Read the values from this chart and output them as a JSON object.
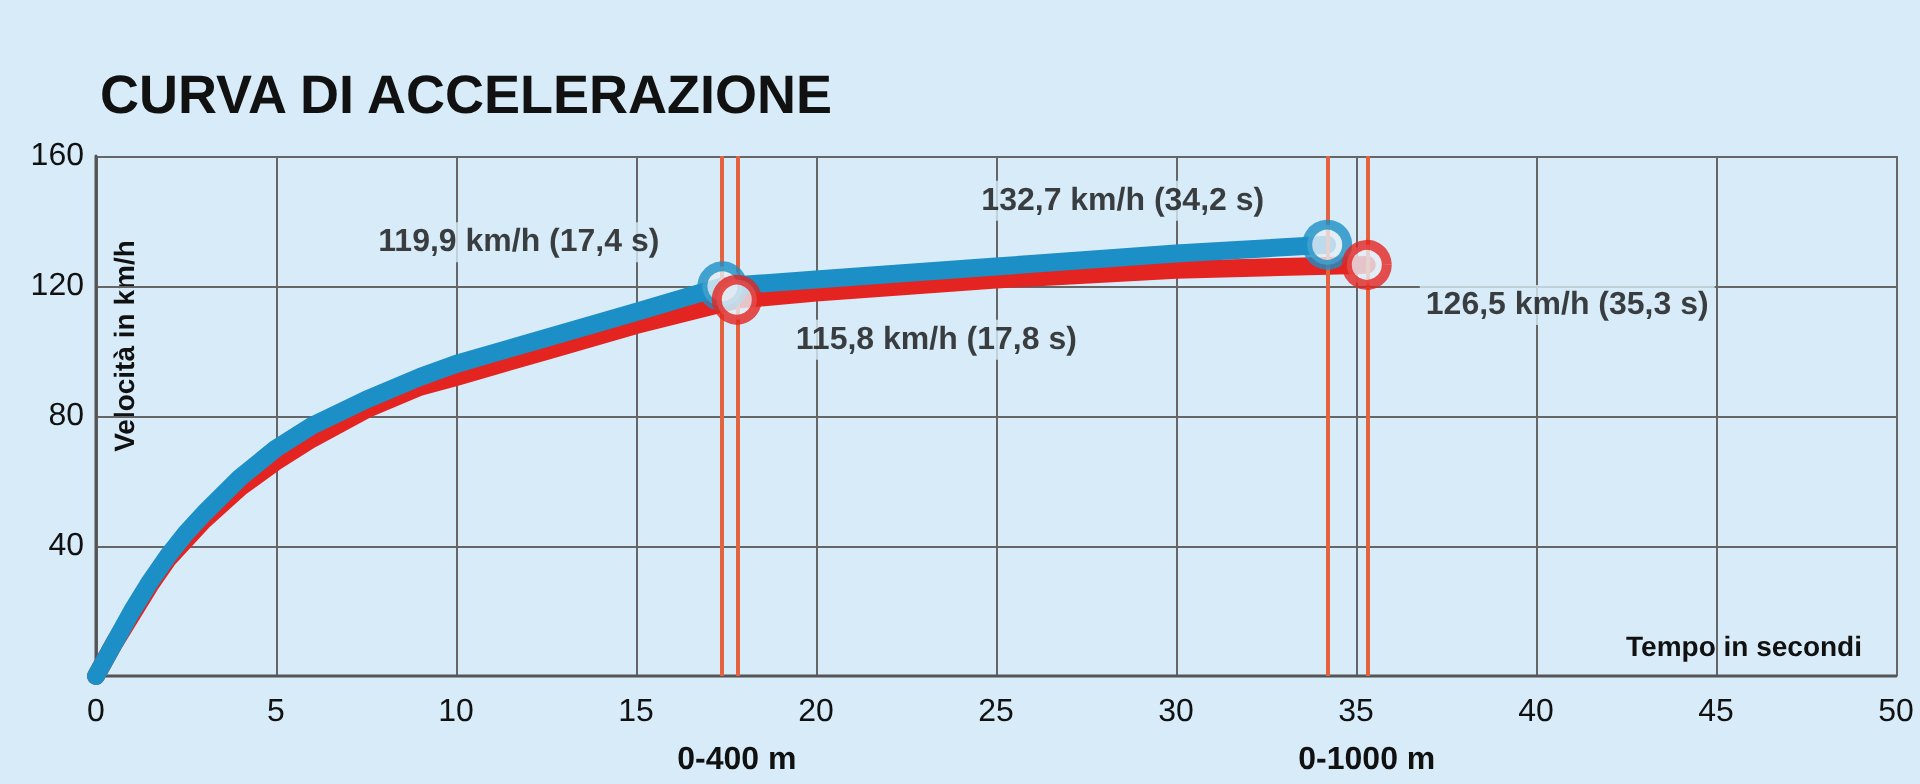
{
  "chart_data": {
    "type": "line",
    "title": "CURVA DI ACCELERAZIONE",
    "xlabel": "Tempo in secondi",
    "ylabel": "Velocità in km/h",
    "xlim": [
      0,
      50
    ],
    "xticks": [
      0,
      5,
      10,
      15,
      20,
      25,
      30,
      35,
      40,
      45,
      50
    ],
    "ylim": [
      0,
      160
    ],
    "yticks": [
      40,
      80,
      120,
      160
    ],
    "grid": true,
    "line_style": "solid",
    "series": [
      {
        "color": "#e42421",
        "x": [
          0,
          0.5,
          1,
          1.5,
          2,
          2.5,
          3,
          4,
          5,
          6,
          7.5,
          9,
          10,
          12.5,
          15,
          17.8,
          20,
          25,
          30,
          35.3
        ],
        "values": [
          0,
          10,
          19,
          28,
          36,
          42,
          48,
          58,
          66,
          73,
          82,
          89,
          92,
          100,
          108,
          115.8,
          118,
          122,
          125,
          126.5
        ]
      },
      {
        "color": "#1b8fc6",
        "x": [
          0,
          0.5,
          1,
          1.5,
          2,
          2.5,
          3,
          4,
          5,
          6,
          7.5,
          9,
          10,
          12.5,
          15,
          17.4,
          20,
          25,
          30,
          34.2
        ],
        "values": [
          0,
          10,
          20,
          29,
          37,
          44,
          50,
          61,
          70,
          77,
          85,
          92,
          96,
          104,
          112,
          119.9,
          122,
          126,
          130,
          132.7
        ]
      }
    ],
    "ref_lines": [
      {
        "axis": "x",
        "value": 17.4,
        "color": "#e4633f"
      },
      {
        "axis": "x",
        "value": 17.8,
        "label": "0-400 m",
        "color": "#e4633f"
      },
      {
        "axis": "x",
        "value": 34.2,
        "color": "#e4633f"
      },
      {
        "axis": "x",
        "value": 35.3,
        "label": "0-1000 m",
        "color": "#e4633f"
      }
    ],
    "annotations": [
      {
        "text": "119,9 km/h (17,4 s)",
        "x": 17.4,
        "y": 119.9
      },
      {
        "text": "115,8 km/h (17,8 s)",
        "x": 17.8,
        "y": 115.8
      },
      {
        "text": "132,7 km/h (34,2 s)",
        "x": 34.2,
        "y": 132.7
      },
      {
        "text": "126,5 km/h (35,3 s)",
        "x": 35.3,
        "y": 126.5
      }
    ]
  }
}
